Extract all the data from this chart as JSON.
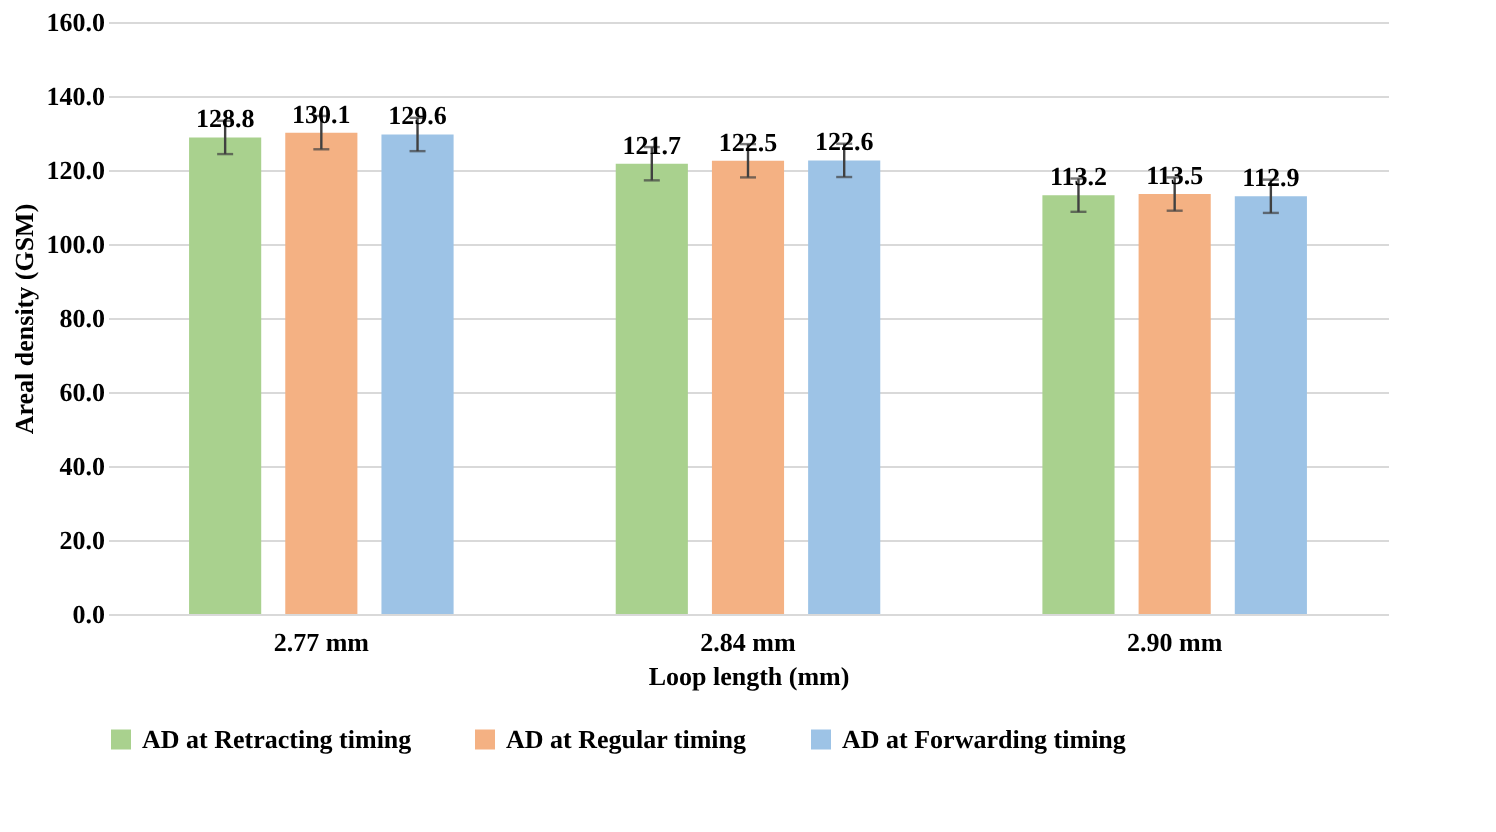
{
  "chart_data": {
    "type": "bar",
    "xlabel": "Loop length (mm)",
    "ylabel": "Areal density (GSM)",
    "categories": [
      "2.77 mm",
      "2.84 mm",
      "2.90 mm"
    ],
    "series": [
      {
        "name": "AD at Retracting timing",
        "color": "#a9d18e",
        "values": [
          128.8,
          121.7,
          113.2
        ],
        "errors": [
          4.5,
          4.5,
          4.5
        ]
      },
      {
        "name": "AD at Regular timing",
        "color": "#f4b183",
        "values": [
          130.1,
          122.5,
          113.5
        ],
        "errors": [
          4.5,
          4.5,
          4.5
        ]
      },
      {
        "name": "AD at Forwarding timing",
        "color": "#9dc3e6",
        "values": [
          129.6,
          122.6,
          112.9
        ],
        "errors": [
          4.5,
          4.5,
          4.5
        ]
      }
    ],
    "ylim": [
      0,
      160
    ],
    "yticks": [
      {
        "value": 0,
        "label": "0.0"
      },
      {
        "value": 20,
        "label": "20.0"
      },
      {
        "value": 40,
        "label": "40.0"
      },
      {
        "value": 60,
        "label": "60.0"
      },
      {
        "value": 80,
        "label": "80.0"
      },
      {
        "value": 100,
        "label": "100.0"
      },
      {
        "value": 120,
        "label": "120.0"
      },
      {
        "value": 140,
        "label": "140.0"
      },
      {
        "value": 160,
        "label": "160.0"
      }
    ],
    "grid": "y",
    "legend": "bottom",
    "data_labels": true
  }
}
